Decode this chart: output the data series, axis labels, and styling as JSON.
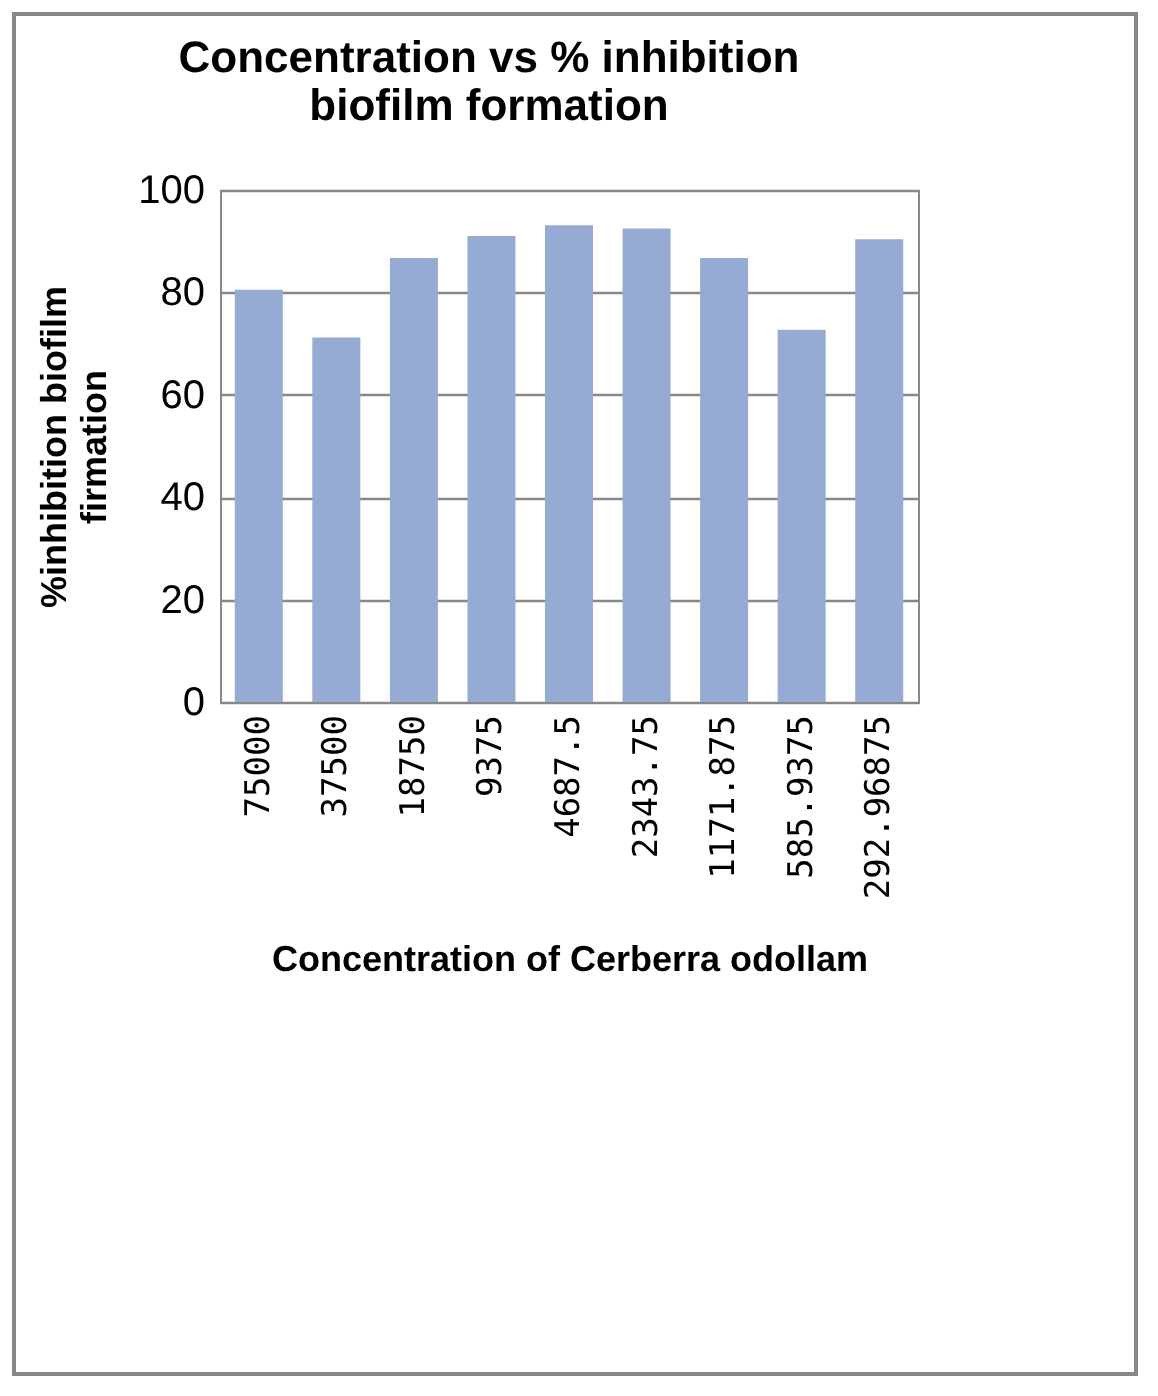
{
  "chart_data": {
    "type": "bar",
    "title": [
      "Concentration vs % inhibition",
      "biofilm formation"
    ],
    "xlabel": "Concentration of Cerberra odollam",
    "ylabel": [
      "%inhibition biofilm",
      "firmation"
    ],
    "categories": [
      "75000",
      "37500",
      "18750",
      "9375",
      "4687.5",
      "2343.75",
      "1171.875",
      "585.9375",
      "292.96875"
    ],
    "values": [
      80.5,
      71.2,
      86.7,
      91,
      93.1,
      92.5,
      86.7,
      72.7,
      90.4
    ],
    "color": "#95abd3",
    "ylim": [
      0,
      100
    ],
    "yticks": [
      0,
      20,
      40,
      60,
      80,
      100
    ],
    "grid": "y"
  }
}
